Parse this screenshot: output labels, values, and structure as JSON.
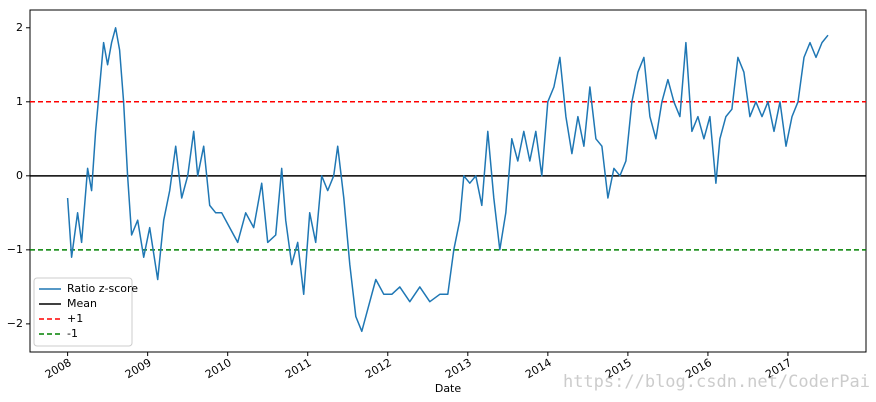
{
  "chart_data": {
    "type": "line",
    "xlabel": "Date",
    "x": [
      2008.0,
      2008.05,
      2008.125,
      2008.175,
      2008.25,
      2008.3,
      2008.35,
      2008.4,
      2008.45,
      2008.5,
      2008.55,
      2008.6,
      2008.65,
      2008.7,
      2008.75,
      2008.8,
      2008.875,
      2008.95,
      2009.025,
      2009.125,
      2009.2,
      2009.275,
      2009.35,
      2009.425,
      2009.5,
      2009.575,
      2009.625,
      2009.7,
      2009.775,
      2009.85,
      2009.925,
      2010.025,
      2010.125,
      2010.225,
      2010.325,
      2010.425,
      2010.5,
      2010.6,
      2010.675,
      2010.725,
      2010.8,
      2010.875,
      2010.95,
      2011.025,
      2011.1,
      2011.175,
      2011.25,
      2011.325,
      2011.375,
      2011.45,
      2011.525,
      2011.6,
      2011.675,
      2011.75,
      2011.85,
      2011.95,
      2012.05,
      2012.15,
      2012.275,
      2012.4,
      2012.525,
      2012.65,
      2012.75,
      2012.825,
      2012.9,
      2012.95,
      2013.025,
      2013.1,
      2013.175,
      2013.25,
      2013.325,
      2013.4,
      2013.475,
      2013.55,
      2013.625,
      2013.7,
      2013.775,
      2013.85,
      2013.925,
      2014.0,
      2014.075,
      2014.15,
      2014.225,
      2014.3,
      2014.375,
      2014.45,
      2014.525,
      2014.6,
      2014.675,
      2014.75,
      2014.825,
      2014.9,
      2014.975,
      2015.05,
      2015.125,
      2015.2,
      2015.275,
      2015.35,
      2015.425,
      2015.5,
      2015.575,
      2015.65,
      2015.725,
      2015.8,
      2015.875,
      2015.95,
      2016.025,
      2016.1,
      2016.15,
      2016.225,
      2016.3,
      2016.375,
      2016.45,
      2016.525,
      2016.6,
      2016.675,
      2016.75,
      2016.825,
      2016.9,
      2016.975,
      2017.05,
      2017.125,
      2017.2,
      2017.275,
      2017.35,
      2017.425,
      2017.5
    ],
    "series": [
      {
        "name": "Ratio z-score",
        "color": "#1f77b4",
        "values": [
          -0.3,
          -1.1,
          -0.5,
          -0.9,
          0.1,
          -0.2,
          0.6,
          1.2,
          1.8,
          1.5,
          1.8,
          2.0,
          1.7,
          1.0,
          0.0,
          -0.8,
          -0.6,
          -1.1,
          -0.7,
          -1.4,
          -0.6,
          -0.2,
          0.4,
          -0.3,
          0.0,
          0.6,
          0.0,
          0.4,
          -0.4,
          -0.5,
          -0.5,
          -0.7,
          -0.9,
          -0.5,
          -0.7,
          -0.1,
          -0.9,
          -0.8,
          0.1,
          -0.6,
          -1.2,
          -0.9,
          -1.6,
          -0.5,
          -0.9,
          0.0,
          -0.2,
          0.0,
          0.4,
          -0.3,
          -1.2,
          -1.9,
          -2.1,
          -1.8,
          -1.4,
          -1.6,
          -1.6,
          -1.5,
          -1.7,
          -1.5,
          -1.7,
          -1.6,
          -1.6,
          -1.0,
          -0.6,
          0.0,
          -0.1,
          0.0,
          -0.4,
          0.6,
          -0.3,
          -1.0,
          -0.5,
          0.5,
          0.2,
          0.6,
          0.2,
          0.6,
          0.0,
          1.0,
          1.2,
          1.6,
          0.8,
          0.3,
          0.8,
          0.4,
          1.2,
          0.5,
          0.4,
          -0.3,
          0.1,
          0.0,
          0.2,
          1.0,
          1.4,
          1.6,
          0.8,
          0.5,
          1.0,
          1.3,
          1.0,
          0.8,
          1.8,
          0.6,
          0.8,
          0.5,
          0.8,
          -0.1,
          0.5,
          0.8,
          0.9,
          1.6,
          1.4,
          0.8,
          1.0,
          0.8,
          1.0,
          0.6,
          1.0,
          0.4,
          0.8,
          1.0,
          1.6,
          1.8,
          1.6,
          1.8,
          1.9
        ]
      }
    ],
    "hlines": [
      {
        "name": "Mean",
        "y": 0,
        "color": "#000000",
        "dashed": false
      },
      {
        "name": "+1",
        "y": 1,
        "color": "#ff0000",
        "dashed": true
      },
      {
        "name": "-1",
        "y": -1,
        "color": "#008000",
        "dashed": true
      }
    ],
    "xlim": [
      2007.53,
      2017.975
    ],
    "xticks": [
      2008,
      2009,
      2010,
      2011,
      2012,
      2013,
      2014,
      2015,
      2016,
      2017
    ],
    "ylim": [
      -2.38,
      2.24
    ],
    "yticks": [
      {
        "value": -2,
        "label": "−2"
      },
      {
        "value": -1,
        "label": "−1"
      },
      0,
      1,
      2
    ],
    "legend": "lower left",
    "watermark": "https://blog.csdn.net/CoderPai"
  }
}
